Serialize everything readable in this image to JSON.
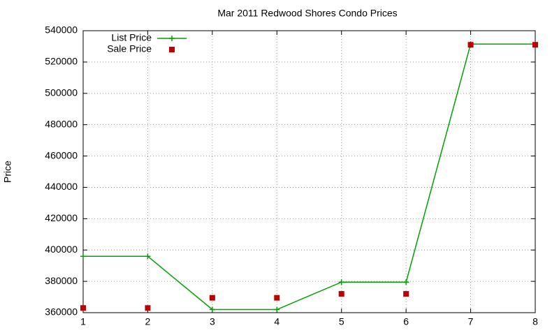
{
  "chart_data": {
    "type": "line",
    "title": "Mar 2011 Redwood Shores Condo Prices",
    "y_label": "Price",
    "x": [
      1,
      2,
      3,
      4,
      5,
      6,
      7,
      8
    ],
    "series": [
      {
        "name": "List Price",
        "color": "#00a000",
        "mode": "line",
        "values": [
          396000,
          396000,
          362000,
          362000,
          379500,
          379500,
          531500,
          531500
        ]
      },
      {
        "name": "Sale Price",
        "color": "#c00000",
        "mode": "points",
        "values": [
          363000,
          363000,
          369500,
          369500,
          372000,
          372000,
          531000,
          531000
        ]
      }
    ],
    "xlim": [
      1,
      8
    ],
    "xticks": [
      1,
      2,
      3,
      4,
      5,
      6,
      7,
      8
    ],
    "ylim": [
      360000,
      540000
    ],
    "yticks": [
      360000,
      380000,
      400000,
      420000,
      440000,
      460000,
      480000,
      500000,
      520000,
      540000
    ],
    "grid": true,
    "legend": "top-left"
  }
}
